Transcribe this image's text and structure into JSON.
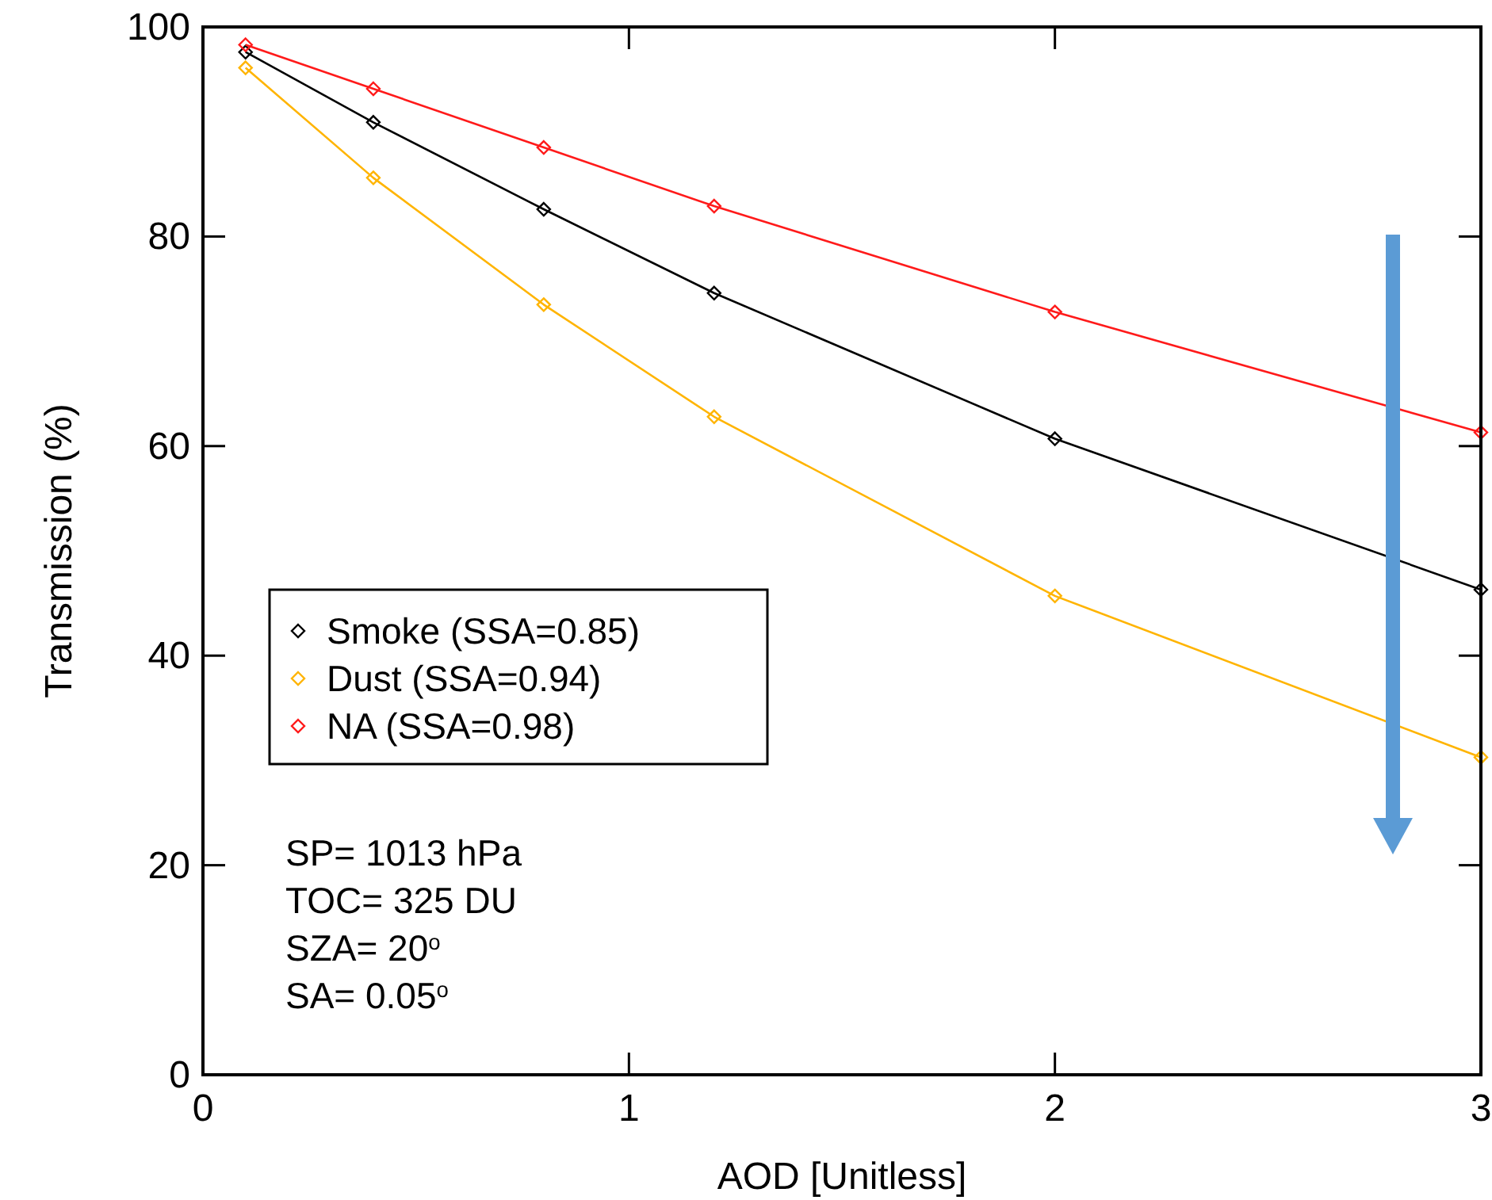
{
  "chart_data": {
    "type": "line",
    "xlabel": "AOD [Unitless]",
    "ylabel": "Transmission (%)",
    "x": [
      0.1,
      0.4,
      0.8,
      1.2,
      2,
      3
    ],
    "series": [
      {
        "name": "Smoke (SSA=0.85)",
        "color": "#000000",
        "values": [
          97.6,
          90.9,
          82.6,
          74.6,
          60.7,
          46.3
        ]
      },
      {
        "name": "Dust (SSA=0.94)",
        "color": "#ffb400",
        "values": [
          96.1,
          85.6,
          73.5,
          62.8,
          45.7,
          30.3
        ]
      },
      {
        "name": "NA (SSA=0.98)",
        "color": "#ff1a1a",
        "values": [
          98.3,
          94.1,
          88.5,
          82.9,
          72.8,
          61.3
        ]
      }
    ],
    "xlim": [
      0,
      3
    ],
    "xticks": [
      0,
      1,
      2,
      3
    ],
    "ylim": [
      0,
      100
    ],
    "yticks": [
      0,
      20,
      40,
      60,
      80,
      100
    ],
    "marker": "diamond",
    "line_style": "solid",
    "grid": false,
    "legend": "left",
    "annotations": [
      "SP= 1013 hPa",
      "TOC= 325 DU",
      "SZA= 20$^{o}$",
      "SA= 0.05$^{o}$"
    ]
  }
}
